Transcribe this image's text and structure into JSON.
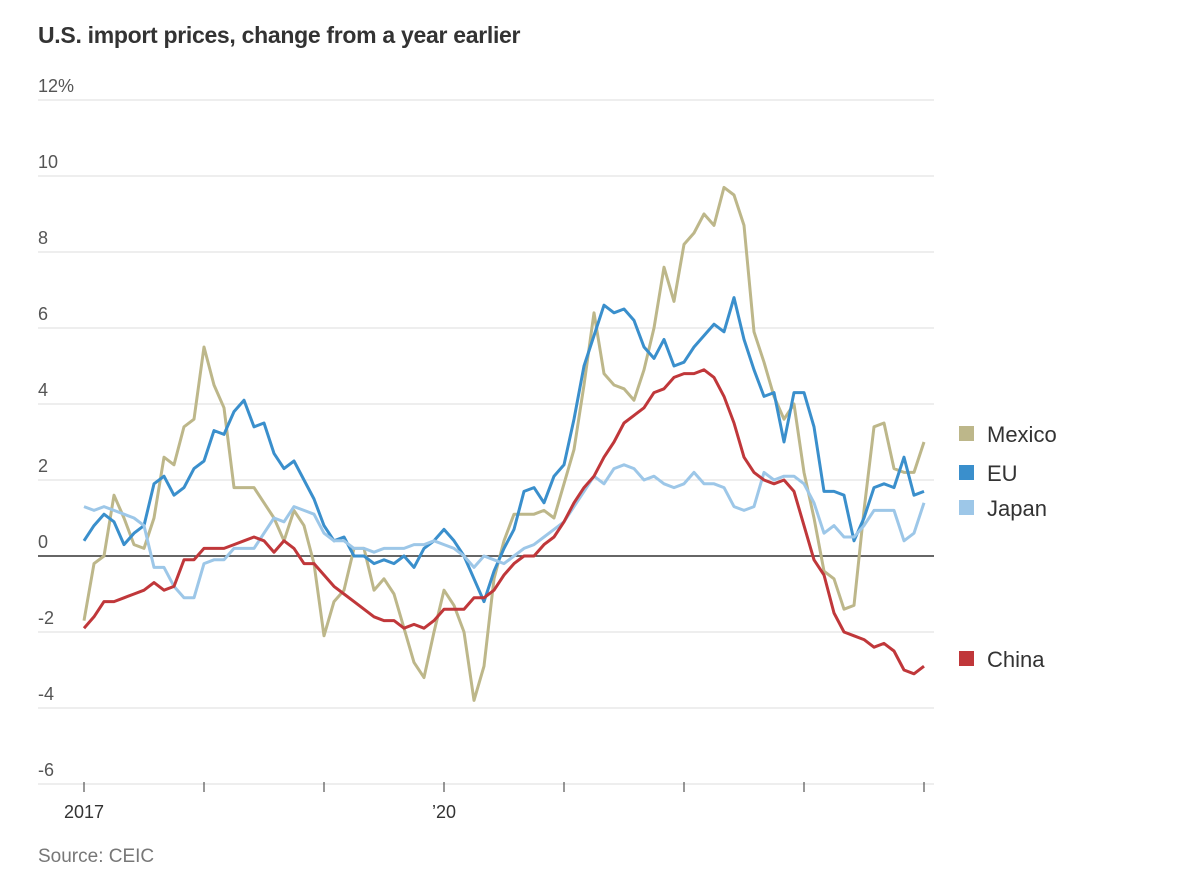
{
  "chart_data": {
    "type": "line",
    "title": "U.S. import prices, change from a year earlier",
    "source": "Source: CEIC",
    "y_unit": "%",
    "ylim": [
      -6,
      12
    ],
    "yticks": [
      12,
      10,
      8,
      6,
      4,
      2,
      0,
      -2,
      -4,
      -6
    ],
    "ytick_labels": [
      "12%",
      "10",
      "8",
      "6",
      "4",
      "2",
      "0",
      "-2",
      "-4",
      "-6"
    ],
    "xticks": [
      "2017",
      "2018",
      "2019",
      "2020",
      "2021",
      "2022",
      "2023",
      "2024"
    ],
    "xtick_labels": [
      "2017",
      "",
      "",
      "’20",
      "",
      "",
      "",
      ""
    ],
    "grid": true,
    "legend_placement": "right",
    "x": [
      "2017-01",
      "2017-02",
      "2017-03",
      "2017-04",
      "2017-05",
      "2017-06",
      "2017-07",
      "2017-08",
      "2017-09",
      "2017-10",
      "2017-11",
      "2017-12",
      "2018-01",
      "2018-02",
      "2018-03",
      "2018-04",
      "2018-05",
      "2018-06",
      "2018-07",
      "2018-08",
      "2018-09",
      "2018-10",
      "2018-11",
      "2018-12",
      "2019-01",
      "2019-02",
      "2019-03",
      "2019-04",
      "2019-05",
      "2019-06",
      "2019-07",
      "2019-08",
      "2019-09",
      "2019-10",
      "2019-11",
      "2019-12",
      "2020-01",
      "2020-02",
      "2020-03",
      "2020-04",
      "2020-05",
      "2020-06",
      "2020-07",
      "2020-08",
      "2020-09",
      "2020-10",
      "2020-11",
      "2020-12",
      "2021-01",
      "2021-02",
      "2021-03",
      "2021-04",
      "2021-05",
      "2021-06",
      "2021-07",
      "2021-08",
      "2021-09",
      "2021-10",
      "2021-11",
      "2021-12",
      "2022-01",
      "2022-02",
      "2022-03",
      "2022-04",
      "2022-05",
      "2022-06",
      "2022-07",
      "2022-08",
      "2022-09",
      "2022-10",
      "2022-11",
      "2022-12",
      "2023-01",
      "2023-02",
      "2023-03",
      "2023-04",
      "2023-05",
      "2023-06",
      "2023-07",
      "2023-08",
      "2023-09",
      "2023-10",
      "2023-11",
      "2023-12",
      "2024-01"
    ],
    "series": [
      {
        "name": "Mexico",
        "color": "#bdb78a",
        "values": [
          -1.7,
          -0.2,
          0.0,
          1.6,
          1.0,
          0.3,
          0.2,
          1.0,
          2.6,
          2.4,
          3.4,
          3.6,
          5.5,
          4.5,
          3.9,
          1.8,
          1.8,
          1.8,
          1.4,
          1.0,
          0.4,
          1.2,
          0.8,
          -0.2,
          -2.1,
          -1.2,
          -0.9,
          0.2,
          0.2,
          -0.9,
          -0.6,
          -1.0,
          -1.9,
          -2.8,
          -3.2,
          -2.0,
          -0.9,
          -1.3,
          -2.0,
          -3.8,
          -2.9,
          -0.6,
          0.4,
          1.1,
          1.1,
          1.1,
          1.2,
          1.0,
          1.9,
          2.8,
          4.5,
          6.4,
          4.8,
          4.5,
          4.4,
          4.1,
          4.9,
          6.0,
          7.6,
          6.7,
          8.2,
          8.5,
          9.0,
          8.7,
          9.7,
          9.5,
          8.7,
          5.9,
          5.1,
          4.2,
          3.6,
          4.0,
          2.2,
          1.0,
          -0.4,
          -0.6,
          -1.4,
          -1.3,
          1.2,
          3.4,
          3.5,
          2.3,
          2.2,
          2.2,
          3.0
        ]
      },
      {
        "name": "EU",
        "color": "#3a8fcc",
        "values": [
          0.4,
          0.8,
          1.1,
          0.9,
          0.3,
          0.6,
          0.8,
          1.9,
          2.1,
          1.6,
          1.8,
          2.3,
          2.5,
          3.3,
          3.2,
          3.8,
          4.1,
          3.4,
          3.5,
          2.7,
          2.3,
          2.5,
          2.0,
          1.5,
          0.8,
          0.4,
          0.5,
          0.0,
          0.0,
          -0.2,
          -0.1,
          -0.2,
          0.0,
          -0.3,
          0.2,
          0.4,
          0.7,
          0.4,
          0.0,
          -0.6,
          -1.2,
          -0.4,
          0.2,
          0.7,
          1.7,
          1.8,
          1.4,
          2.1,
          2.4,
          3.6,
          5.0,
          5.8,
          6.6,
          6.4,
          6.5,
          6.2,
          5.5,
          5.2,
          5.7,
          5.0,
          5.1,
          5.5,
          5.8,
          6.1,
          5.9,
          6.8,
          5.7,
          4.9,
          4.2,
          4.3,
          3.0,
          4.3,
          4.3,
          3.4,
          1.7,
          1.7,
          1.6,
          0.4,
          1.0,
          1.8,
          1.9,
          1.8,
          2.6,
          1.6,
          1.7
        ]
      },
      {
        "name": "Japan",
        "color": "#9dc7e8",
        "values": [
          1.3,
          1.2,
          1.3,
          1.2,
          1.1,
          1.0,
          0.8,
          -0.3,
          -0.3,
          -0.8,
          -1.1,
          -1.1,
          -0.2,
          -0.1,
          -0.1,
          0.2,
          0.2,
          0.2,
          0.6,
          1.0,
          0.9,
          1.3,
          1.2,
          1.1,
          0.6,
          0.4,
          0.4,
          0.2,
          0.2,
          0.1,
          0.2,
          0.2,
          0.2,
          0.3,
          0.3,
          0.4,
          0.3,
          0.2,
          0.0,
          -0.3,
          0.0,
          -0.1,
          -0.2,
          0.0,
          0.2,
          0.3,
          0.5,
          0.7,
          0.9,
          1.3,
          1.7,
          2.1,
          1.9,
          2.3,
          2.4,
          2.3,
          2.0,
          2.1,
          1.9,
          1.8,
          1.9,
          2.2,
          1.9,
          1.9,
          1.8,
          1.3,
          1.2,
          1.3,
          2.2,
          2.0,
          2.1,
          2.1,
          1.9,
          1.4,
          0.6,
          0.8,
          0.5,
          0.5,
          0.8,
          1.2,
          1.2,
          1.2,
          0.4,
          0.6,
          1.4
        ]
      },
      {
        "name": "China",
        "color": "#c0373a",
        "values": [
          -1.9,
          -1.6,
          -1.2,
          -1.2,
          -1.1,
          -1.0,
          -0.9,
          -0.7,
          -0.9,
          -0.8,
          -0.1,
          -0.1,
          0.2,
          0.2,
          0.2,
          0.3,
          0.4,
          0.5,
          0.4,
          0.1,
          0.4,
          0.2,
          -0.2,
          -0.2,
          -0.5,
          -0.8,
          -1.0,
          -1.2,
          -1.4,
          -1.6,
          -1.7,
          -1.7,
          -1.9,
          -1.8,
          -1.9,
          -1.7,
          -1.4,
          -1.4,
          -1.4,
          -1.1,
          -1.1,
          -0.9,
          -0.5,
          -0.2,
          0.0,
          0.0,
          0.3,
          0.5,
          0.9,
          1.4,
          1.8,
          2.1,
          2.6,
          3.0,
          3.5,
          3.7,
          3.9,
          4.3,
          4.4,
          4.7,
          4.8,
          4.8,
          4.9,
          4.7,
          4.2,
          3.5,
          2.6,
          2.2,
          2.0,
          1.9,
          2.0,
          1.7,
          0.8,
          -0.1,
          -0.5,
          -1.5,
          -2.0,
          -2.1,
          -2.2,
          -2.4,
          -2.3,
          -2.5,
          -3.0,
          -3.1,
          -2.9
        ]
      }
    ]
  }
}
